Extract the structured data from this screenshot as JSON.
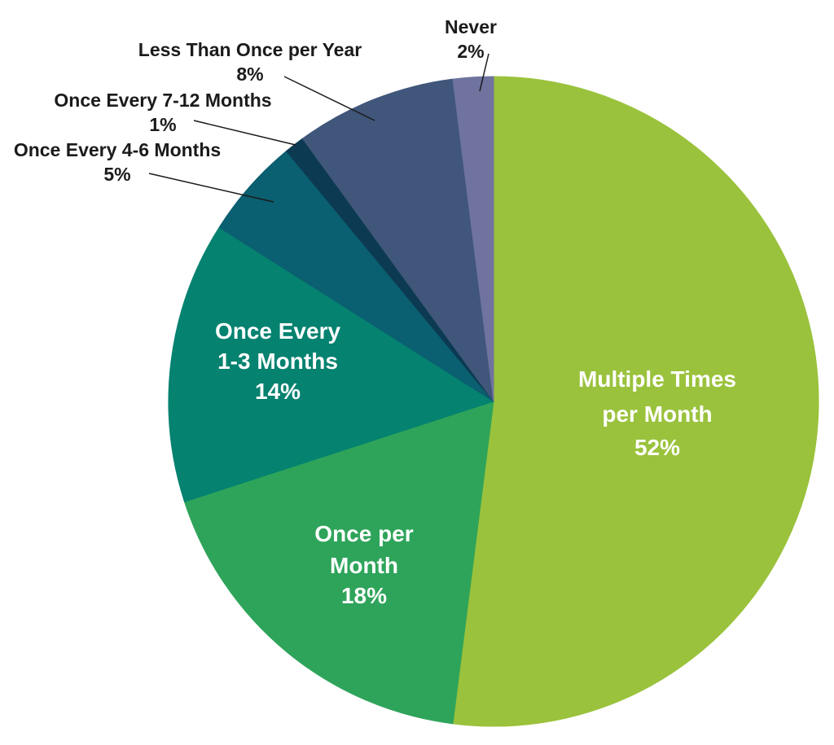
{
  "chart_data": {
    "type": "pie",
    "title": "",
    "start_angle_deg": 0,
    "direction": "clockwise",
    "background": "#ffffff",
    "categories": [
      "Multiple Times per Month",
      "Once per Month",
      "Once Every 1-3 Months",
      "Once Every 4-6 Months",
      "Once Every 7-12 Months",
      "Less Than Once per Year",
      "Never"
    ],
    "values": [
      52,
      18,
      14,
      5,
      1,
      8,
      2
    ],
    "slices": [
      {
        "key": "multiple-times-per-month",
        "label": "Multiple Times per Month",
        "label_lines": [
          "Multiple Times",
          "per Month"
        ],
        "pct": 52,
        "pct_label": "52%",
        "color": "#9ac23c",
        "label_placement": "inside"
      },
      {
        "key": "once-per-month",
        "label": "Once per Month",
        "label_lines": [
          "Once per",
          "Month"
        ],
        "pct": 18,
        "pct_label": "18%",
        "color": "#2ea45a",
        "label_placement": "inside"
      },
      {
        "key": "once-every-1-3-months",
        "label": "Once Every 1-3 Months",
        "label_lines": [
          "Once Every",
          "1-3 Months"
        ],
        "pct": 14,
        "pct_label": "14%",
        "color": "#058270",
        "label_placement": "inside"
      },
      {
        "key": "once-every-4-6-months",
        "label": "Once Every 4-6 Months",
        "label_lines": [
          "Once Every 4-6 Months"
        ],
        "pct": 5,
        "pct_label": "5%",
        "color": "#0a5f70",
        "label_placement": "outside"
      },
      {
        "key": "once-every-7-12-months",
        "label": "Once Every 7-12 Months",
        "label_lines": [
          "Once Every 7-12 Months"
        ],
        "pct": 1,
        "pct_label": "1%",
        "color": "#0c3a52",
        "label_placement": "outside"
      },
      {
        "key": "less-than-once-per-year",
        "label": "Less Than Once per Year",
        "label_lines": [
          "Less Than Once per Year"
        ],
        "pct": 8,
        "pct_label": "8%",
        "color": "#40567a",
        "label_placement": "outside"
      },
      {
        "key": "never",
        "label": "Never",
        "label_lines": [
          "Never"
        ],
        "pct": 2,
        "pct_label": "2%",
        "color": "#6f739e",
        "label_placement": "outside"
      }
    ],
    "text_colors": {
      "inside": "#ffffff",
      "outside": "#1b1b1b"
    }
  }
}
